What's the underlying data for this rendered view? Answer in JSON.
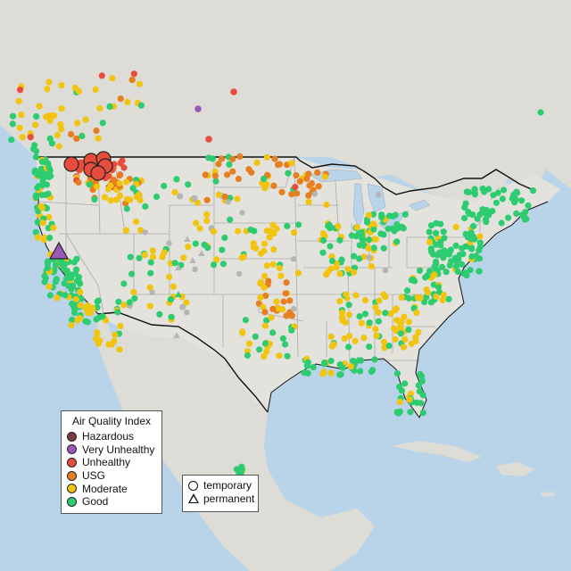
{
  "legend": {
    "title": "Air Quality Index",
    "categories": [
      {
        "label": "Hazardous",
        "color": "#7e3b3b"
      },
      {
        "label": "Very Unhealthy",
        "color": "#9b59b6"
      },
      {
        "label": "Unhealthy",
        "color": "#e74c3c"
      },
      {
        "label": "USG",
        "color": "#e67e22"
      },
      {
        "label": "Moderate",
        "color": "#f1c40f"
      },
      {
        "label": "Good",
        "color": "#2ecc71"
      }
    ],
    "monitor_types": [
      {
        "label": "temporary",
        "shape": "circle"
      },
      {
        "label": "permanent",
        "shape": "triangle"
      }
    ]
  },
  "colors": {
    "water": "#b9d3e9",
    "land": "#dddcd6",
    "usa_land": "#e3e2dc",
    "state_border": "#ababab",
    "country_border": "#111111",
    "monitor_gray": "#b5b5b5"
  }
}
